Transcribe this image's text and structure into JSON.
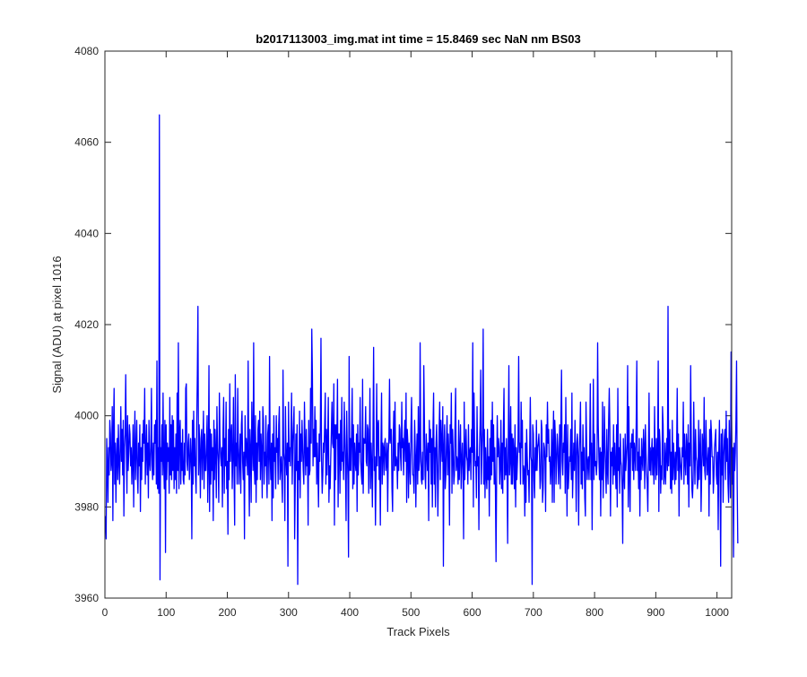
{
  "chart_data": {
    "type": "line",
    "title": "b2017113003_img.mat int time = 15.8469 sec  NaN nm BS03",
    "xlabel": "Track Pixels",
    "ylabel": "Signal (ADU) at pixel 1016",
    "xlim": [
      0,
      1024
    ],
    "ylim": [
      3960,
      4080
    ],
    "xticks": [
      0,
      100,
      200,
      300,
      400,
      500,
      600,
      700,
      800,
      900,
      1000
    ],
    "yticks": [
      3960,
      3980,
      4000,
      4020,
      4040,
      4060,
      4080
    ],
    "grid": false,
    "legend": "none",
    "series": [
      {
        "color": "#0000ff",
        "x_start": 1,
        "x_step": 1,
        "values": [
          3978,
          3973,
          3995,
          3989,
          3981,
          3993,
          3987,
          3999,
          3996,
          3988,
          3990,
          4002,
          3977,
          3997,
          4006,
          3985,
          3994,
          3981,
          3991,
          3995,
          3986,
          3998,
          3990,
          3985,
          3993,
          4002,
          3990,
          3997,
          3987,
          3999,
          3978,
          3993,
          3996,
          4009,
          3993,
          3983,
          4000,
          3988,
          3992,
          3998,
          3996,
          3989,
          3993,
          3985,
          3990,
          3998,
          3980,
          3993,
          4001,
          3986,
          3992,
          3999,
          3987,
          3983,
          3994,
          3989,
          3998,
          3979,
          3993,
          3986,
          3996,
          3990,
          3999,
          3994,
          4006,
          3985,
          3992,
          3998,
          3987,
          3994,
          3982,
          3999,
          3990,
          3988,
          3993,
          4006,
          3989,
          3986,
          3994,
          3987,
          3998,
          3994,
          3999,
          3985,
          4012,
          3984,
          3993,
          3983,
          4066,
          3964,
          3993,
          3990,
          3998,
          3987,
          4005,
          3990,
          3984,
          3999,
          3970,
          3998,
          3986,
          3994,
          3990,
          3993,
          3983,
          4004,
          3987,
          3998,
          3986,
          4000,
          3988,
          3999,
          3984,
          3993,
          3986,
          3996,
          3983,
          4005,
          3988,
          4016,
          3984,
          3996,
          3999,
          3985,
          3994,
          3988,
          3997,
          3986,
          3985,
          3994,
          3987,
          4006,
          4007,
          3990,
          3988,
          3994,
          3996,
          3986,
          3989,
          3995,
          3991,
          3973,
          3999,
          3985,
          4001,
          3989,
          3995,
          3987,
          3983,
          3998,
          4009,
          4024,
          3987,
          3998,
          3992,
          3982,
          3995,
          3997,
          3986,
          3993,
          4001,
          3984,
          3996,
          3988,
          3988,
          3994,
          4000,
          3981,
          3990,
          4011,
          3979,
          3997,
          3985,
          3996,
          3988,
          3993,
          3977,
          3999,
          3986,
          3997,
          3992,
          3982,
          4002,
          3993,
          3990,
          3981,
          4005,
          3995,
          3991,
          3989,
          3993,
          3980,
          3997,
          4004,
          3983,
          3995,
          3989,
          4003,
          3984,
          3990,
          3974,
          3997,
          3986,
          4007,
          3990,
          3995,
          3998,
          3984,
          3991,
          4004,
          3987,
          3976,
          4009,
          3989,
          3994,
          3985,
          4006,
          3993,
          3985,
          3991,
          3996,
          3983,
          3998,
          4001,
          3990,
          3986,
          3992,
          3973,
          4000,
          3989,
          3995,
          3992,
          3987,
          4012,
          3989,
          3978,
          3997,
          3992,
          3981,
          4003,
          3994,
          3988,
          4016,
          3989,
          3985,
          4000,
          3981,
          3994,
          3986,
          3997,
          3999,
          3990,
          4001,
          3986,
          3996,
          3992,
          3982,
          4002,
          3999,
          3985,
          3992,
          3989,
          4000,
          3988,
          3982,
          3996,
          3998,
          3985,
          4013,
          3991,
          3986,
          3994,
          3977,
          3996,
          3982,
          4000,
          3990,
          3993,
          3984,
          4000,
          3992,
          3995,
          3985,
          3998,
          4002,
          3986,
          3989,
          3991,
          3986,
          3981,
          4010,
          3992,
          3990,
          3977,
          4002,
          3991,
          3987,
          3994,
          3967,
          4003,
          3990,
          3993,
          3989,
          3996,
          4005,
          3985,
          3994,
          3998,
          4002,
          3973,
          3985,
          3996,
          3988,
          3998,
          3963,
          3990,
          3986,
          4001,
          3982,
          3996,
          3990,
          3999,
          3993,
          3988,
          3985,
          4003,
          3994,
          3987,
          3997,
          3989,
          3993,
          3976,
          3999,
          3987,
          3988,
          4006,
          3994,
          4019,
          4009,
          3989,
          3997,
          3991,
          4002,
          3991,
          3999,
          3985,
          3994,
          3988,
          3980,
          3996,
          3990,
          3998,
          4017,
          3990,
          3983,
          3987,
          3994,
          3992,
          3998,
          4005,
          3985,
          3997,
          3987,
          3995,
          4004,
          3981,
          3989,
          3984,
          3991,
          3997,
          4003,
          3994,
          3993,
          4007,
          3976,
          3998,
          3986,
          3998,
          3995,
          4008,
          3980,
          3996,
          3996,
          3983,
          3999,
          3988,
          4004,
          3990,
          3992,
          3986,
          4003,
          3996,
          3989,
          3977,
          4001,
          3992,
          3986,
          3969,
          4013,
          3988,
          3995,
          3988,
          3996,
          4006,
          3984,
          3998,
          3985,
          3994,
          3990,
          3988,
          3996,
          3979,
          3998,
          3987,
          3994,
          3992,
          4004,
          3990,
          3987,
          3985,
          4008,
          3983,
          3995,
          3994,
          3994,
          4002,
          3990,
          3989,
          3998,
          3997,
          3983,
          3992,
          4006,
          3984,
          3994,
          3989,
          3980,
          3997,
          4015,
          3988,
          3991,
          3976,
          3987,
          4007,
          3989,
          3998,
          3999,
          3986,
          3991,
          3976,
          3994,
          4005,
          3985,
          3994,
          3993,
          3987,
          3994,
          3995,
          3988,
          3990,
          3994,
          3979,
          3992,
          3995,
          4008,
          3994,
          3997,
          3997,
          3984,
          3979,
          3995,
          4001,
          3988,
          4003,
          3989,
          3991,
          3990,
          3984,
          3994,
          3988,
          3998,
          3997,
          3991,
          3988,
          4003,
          3993,
          3995,
          3987,
          3994,
          3999,
          3990,
          4005,
          3981,
          3997,
          3994,
          3982,
          3994,
          3990,
          3985,
          3997,
          4004,
          3993,
          3987,
          3987,
          3983,
          3999,
          3993,
          3980,
          3991,
          3996,
          3985,
          4002,
          3988,
          3990,
          4016,
          3993,
          3986,
          3985,
          3992,
          3986,
          4011,
          3999,
          3987,
          3984,
          3996,
          3992,
          3988,
          3994,
          3977,
          3999,
          3992,
          3997,
          3985,
          3995,
          3980,
          3997,
          4005,
          3985,
          3993,
          3980,
          3994,
          3998,
          3989,
          3978,
          3988,
          3997,
          4003,
          3986,
          3999,
          3994,
          3990,
          4002,
          3967,
          3993,
          3998,
          3984,
          3987,
          3994,
          4000,
          3987,
          3996,
          3991,
          3976,
          3998,
          3994,
          4005,
          3983,
          3997,
          3992,
          3985,
          3987,
          3998,
          4006,
          3988,
          3991,
          3990,
          3985,
          3999,
          3986,
          3992,
          3998,
          3984,
          3990,
          3994,
          3988,
          3973,
          4003,
          3986,
          3992,
          3997,
          3991,
          3990,
          3985,
          3998,
          3988,
          3992,
          3993,
          3986,
          3997,
          3992,
          4016,
          3980,
          4005,
          3994,
          3989,
          3990,
          3982,
          4002,
          3989,
          3991,
          3975,
          3993,
          3998,
          4010,
          3985,
          3992,
          3997,
          4019,
          3985,
          3997,
          3982,
          3993,
          3987,
          3984,
          3997,
          3986,
          3991,
          3978,
          3995,
          3986,
          3999,
          3987,
          4003,
          3990,
          3998,
          3985,
          3993,
          3984,
          3968,
          3987,
          4000,
          3991,
          3995,
          3993,
          3985,
          3989,
          3999,
          3984,
          3994,
          3983,
          3997,
          4006,
          3986,
          3993,
          3987,
          3995,
          3988,
          3972,
          3994,
          4011,
          3987,
          3990,
          4002,
          3985,
          3996,
          3985,
          3995,
          3992,
          3984,
          3998,
          3980,
          3993,
          3986,
          3990,
          3995,
          4013,
          3992,
          3994,
          3985,
          4003,
          3993,
          3999,
          3985,
          3989,
          3988,
          3978,
          3994,
          3981,
          3997,
          3991,
          3987,
          3988,
          3981,
          3993,
          4004,
          3991,
          3990,
          3963,
          3998,
          3996,
          3986,
          3982,
          3993,
          3988,
          3999,
          3988,
          3993,
          3994,
          3996,
          3991,
          3984,
          3986,
          3999,
          3997,
          3981,
          3984,
          3994,
          3993,
          3990,
          3979,
          3998,
          3991,
          4003,
          3994,
          3997,
          3990,
          3991,
          3985,
          3989,
          3997,
          3981,
          3993,
          4001,
          3981,
          3999,
          3995,
          3985,
          3990,
          3996,
          3993,
          3985,
          3990,
          3998,
          3984,
          3999,
          4010,
          3990,
          3987,
          3994,
          3992,
          3998,
          3983,
          4004,
          3991,
          3978,
          3998,
          3984,
          3987,
          3991,
          3990,
          3997,
          3986,
          4005,
          3982,
          3988,
          3994,
          3988,
          3999,
          3991,
          3979,
          3994,
          3996,
          3991,
          3976,
          3992,
          3996,
          4003,
          3985,
          3992,
          3984,
          3998,
          3988,
          3993,
          3982,
          3978,
          4003,
          3994,
          3986,
          3990,
          3991,
          3986,
          3993,
          4007,
          3986,
          3994,
          3975,
          3991,
          4008,
          3986,
          3996,
          3989,
          3990,
          3987,
          3990,
          4016,
          3998,
          3991,
          3986,
          3993,
          3978,
          3992,
          3986,
          4003,
          3982,
          3989,
          4002,
          3993,
          3988,
          3983,
          3997,
          3988,
          3985,
          3999,
          4006,
          3997,
          3978,
          3992,
          3989,
          3993,
          3985,
          3998,
          3987,
          3994,
          3989,
          3984,
          3998,
          3980,
          4006,
          3988,
          3993,
          3983,
          3996,
          3990,
          3989,
          3984,
          3972,
          3995,
          3988,
          3984,
          3996,
          3988,
          3991,
          3994,
          4011,
          3980,
          4002,
          3988,
          3979,
          3994,
          3993,
          3996,
          3988,
          3997,
          3986,
          3994,
          3992,
          3988,
          3998,
          4012,
          3988,
          3992,
          3984,
          3995,
          3978,
          3991,
          3986,
          3995,
          3990,
          3988,
          3997,
          3993,
          3984,
          3998,
          3992,
          3988,
          3985,
          3979,
          3991,
          4005,
          3988,
          3993,
          3987,
          3992,
          3995,
          3987,
          3993,
          3985,
          4002,
          3990,
          3986,
          3995,
          3987,
          3993,
          4012,
          3979,
          3997,
          3994,
          3983,
          3989,
          3986,
          4002,
          3998,
          3985,
          3987,
          3994,
          3985,
          3991,
          3995,
          3988,
          4024,
          3989,
          3995,
          3997,
          3984,
          3992,
          3983,
          3999,
          3986,
          3994,
          3990,
          3985,
          3992,
          3986,
          3992,
          4006,
          3988,
          3996,
          3978,
          3993,
          3990,
          3988,
          3986,
          3993,
          3991,
          4003,
          3985,
          3996,
          3990,
          3987,
          3996,
          3993,
          3985,
          3998,
          3980,
          3994,
          3989,
          4011,
          3994,
          3984,
          3982,
          3986,
          4003,
          3992,
          3985,
          3997,
          3991,
          3990,
          3984,
          3986,
          3999,
          3986,
          3992,
          3997,
          3979,
          3987,
          3996,
          3993,
          3989,
          4004,
          3988,
          3986,
          3999,
          3992,
          3987,
          3990,
          3993,
          3978,
          3997,
          3985,
          3999,
          3996,
          3991,
          3991,
          3983,
          3987,
          3993,
          3995,
          3997,
          3987,
          3985,
          3992,
          3975,
          3992,
          3999,
          3989,
          3967,
          3996,
          3987,
          3997,
          3981,
          3991,
          3995,
          3997,
          3986,
          4001,
          3990,
          3995,
          3985,
          3981,
          3999,
          3990,
          3982,
          4014,
          3998,
          3985,
          3993,
          3969,
          3994,
          3988,
          3992,
          3999,
          4012,
          3985,
          3972
        ]
      }
    ]
  }
}
